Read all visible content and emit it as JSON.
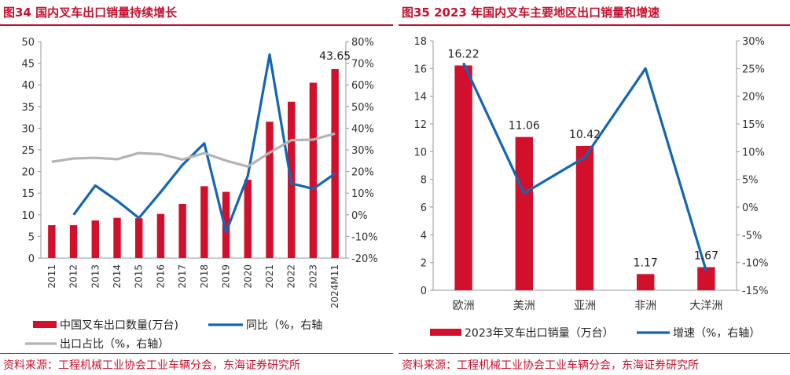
{
  "colors": {
    "accent": "#c8102e",
    "bar": "#d2102b",
    "line_blue": "#1565b5",
    "line_gray": "#b4b4b4"
  },
  "left": {
    "title": "图34 国内叉车出口销量持续增长",
    "source": "资料来源：工程机械工业协会工业车辆分会，东海证券研究所",
    "legend": {
      "bar": "中国叉车出口数量(万台)",
      "line1": "同比（%，右轴",
      "line2": "出口占比（%，右轴）"
    }
  },
  "right": {
    "title": "图35 2023 年国内叉车主要地区出口销量和增速",
    "source": "资料来源：工程机械工业协会工业车辆分会，东海证券研究所",
    "legend": {
      "bar": "2023年叉车出口销量（万台）",
      "line": "增速（%，右轴）"
    }
  },
  "chart_data": [
    {
      "type": "bar",
      "categories": [
        "2011",
        "2012",
        "2013",
        "2014",
        "2015",
        "2016",
        "2017",
        "2018",
        "2019",
        "2020",
        "2021",
        "2022",
        "2023",
        "2024M11"
      ],
      "series": [
        {
          "name": "中国叉车出口数量(万台)",
          "type": "bar",
          "axis": "left",
          "values": [
            7.6,
            7.6,
            8.7,
            9.3,
            9.2,
            10.2,
            12.5,
            16.6,
            15.3,
            18.1,
            31.5,
            36.1,
            40.5,
            43.65
          ]
        },
        {
          "name": "同比（%，右轴",
          "type": "line",
          "axis": "right",
          "values": [
            null,
            0.0,
            13.5,
            6.5,
            -1.5,
            10.5,
            23.0,
            33.0,
            -8.0,
            18.0,
            74.0,
            14.5,
            12.0,
            19.0
          ]
        },
        {
          "name": "出口占比（%，右轴）",
          "type": "line",
          "axis": "right",
          "values": [
            24.5,
            26.0,
            26.3,
            25.7,
            28.5,
            28.0,
            25.5,
            28.5,
            25.0,
            22.3,
            28.7,
            34.5,
            34.7,
            37.5
          ]
        }
      ],
      "data_labels": [
        {
          "category": "2024M11",
          "text": "43.65"
        }
      ],
      "ylim_left": [
        0,
        50
      ],
      "yticks_left": [
        "0",
        "5",
        "10",
        "15",
        "20",
        "25",
        "30",
        "35",
        "40",
        "45",
        "50"
      ],
      "ylim_right": [
        -20,
        80
      ],
      "yticks_right": [
        "-20%",
        "-10%",
        "0%",
        "10%",
        "20%",
        "30%",
        "40%",
        "50%",
        "60%",
        "70%",
        "80%"
      ],
      "grid": false,
      "legend_position": "bottom"
    },
    {
      "type": "bar",
      "categories": [
        "欧洲",
        "美洲",
        "亚洲",
        "非洲",
        "大洋洲"
      ],
      "series": [
        {
          "name": "2023年叉车出口销量（万台）",
          "type": "bar",
          "axis": "left",
          "values": [
            16.22,
            11.06,
            10.42,
            1.17,
            1.67
          ]
        },
        {
          "name": "增速（%，右轴）",
          "type": "line",
          "axis": "right",
          "values": [
            26.0,
            2.5,
            9.0,
            25.0,
            -11.5
          ]
        }
      ],
      "data_labels": [
        "16.22",
        "11.06",
        "10.42",
        "1.17",
        "1.67"
      ],
      "ylim_left": [
        0,
        18
      ],
      "yticks_left": [
        "0",
        "2",
        "4",
        "6",
        "8",
        "10",
        "12",
        "14",
        "16",
        "18"
      ],
      "ylim_right": [
        -15,
        30
      ],
      "yticks_right": [
        "-15%",
        "-10%",
        "-5%",
        "0%",
        "5%",
        "10%",
        "15%",
        "20%",
        "25%",
        "30%"
      ],
      "grid": false,
      "legend_position": "bottom"
    }
  ]
}
